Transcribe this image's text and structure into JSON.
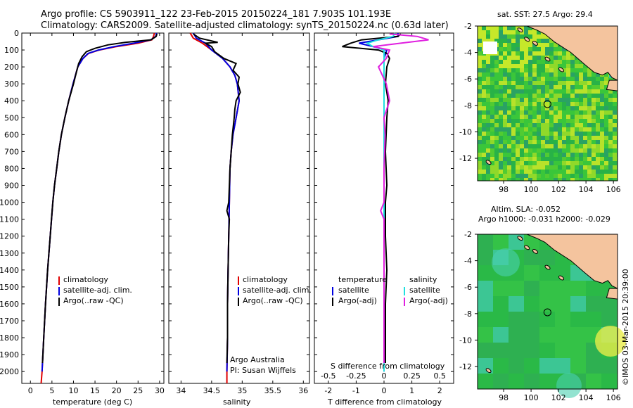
{
  "header": {
    "line1": "Argo profile: CS 5903911_122 23-Feb-2015 20150224_181 7.903S 101.193E",
    "line2": "Climatology: CARS2009. Satellite-adjusted climatology: synTS_20150224.nc (0.63d later)"
  },
  "colors": {
    "climatology": "#e00000",
    "satellite": "#0000e0",
    "argo": "#000000",
    "sat_salinity": "#20e0e0",
    "argo_salinity": "#e020e0",
    "land": "#f4c49e",
    "sea_green": "#2fbf2f"
  },
  "chart_data": [
    {
      "type": "line",
      "name": "temperature-profile",
      "xlabel": "temperature (deg C)",
      "ylabel": "depth",
      "xlim": [
        -2,
        31
      ],
      "ylim": [
        2070,
        0
      ],
      "xticks": [
        0,
        5,
        10,
        15,
        20,
        25,
        30
      ],
      "yticks": [
        0,
        100,
        200,
        300,
        400,
        500,
        600,
        700,
        800,
        900,
        1000,
        1100,
        1200,
        1300,
        1400,
        1500,
        1600,
        1700,
        1800,
        1900,
        2000
      ],
      "legend": [
        "climatology",
        "satellite-adj. clim.",
        "Argo(..raw -QC)"
      ],
      "series": [
        {
          "name": "climatology",
          "depth": [
            0,
            20,
            40,
            60,
            80,
            100,
            120,
            150,
            200,
            300,
            400,
            500,
            600,
            700,
            800,
            900,
            1000,
            1200,
            1400,
            1600,
            1800,
            2000,
            2070
          ],
          "values": [
            28.8,
            28.6,
            28.2,
            25,
            20,
            16,
            13.5,
            12.2,
            11,
            9.9,
            8.9,
            8,
            7.2,
            6.6,
            6.1,
            5.6,
            5.2,
            4.6,
            4,
            3.5,
            3.1,
            2.7,
            2.5
          ]
        },
        {
          "name": "satellite-adj. clim.",
          "depth": [
            0,
            20,
            40,
            60,
            80,
            100,
            120,
            150,
            200,
            300,
            400,
            500,
            600,
            700,
            800,
            900,
            1000,
            1200,
            1400,
            1600,
            1800,
            2000
          ],
          "values": [
            29.3,
            29.1,
            28,
            24,
            19.5,
            15.8,
            13.4,
            12.2,
            11,
            9.9,
            8.9,
            8,
            7.2,
            6.6,
            6.1,
            5.6,
            5.2,
            4.6,
            4,
            3.5,
            3.1,
            2.7
          ]
        },
        {
          "name": "Argo(..raw -QC)",
          "depth": [
            5,
            20,
            40,
            55,
            70,
            90,
            110,
            140,
            180,
            250,
            300,
            400,
            500,
            600,
            700,
            800,
            900,
            1000,
            1100,
            1200,
            1400,
            1600,
            1800,
            1950
          ],
          "values": [
            29.4,
            29.2,
            28,
            22,
            18,
            15,
            13,
            12,
            11.2,
            10.5,
            10,
            8.9,
            8,
            7.2,
            6.6,
            6.1,
            5.6,
            5.2,
            4.9,
            4.6,
            4,
            3.5,
            3.1,
            2.8
          ]
        }
      ]
    },
    {
      "type": "line",
      "name": "salinity-profile",
      "xlabel": "salinity",
      "xlim": [
        33.8,
        36.1
      ],
      "ylim": [
        2070,
        0
      ],
      "xticks": [
        34,
        34.5,
        35,
        35.5,
        36
      ],
      "legend": [
        "climatology",
        "satellite-adj. clim.",
        "Argo(..raw -QC)"
      ],
      "annotation": [
        "Argo Australia",
        "PI: Susan Wijffels"
      ],
      "series": [
        {
          "name": "climatology",
          "depth": [
            0,
            30,
            60,
            100,
            150,
            200,
            250,
            300,
            400,
            500,
            600,
            700,
            800,
            1000,
            1200,
            1400,
            1600,
            1800,
            2000,
            2070
          ],
          "values": [
            34.15,
            34.2,
            34.35,
            34.5,
            34.68,
            34.8,
            34.88,
            34.92,
            34.95,
            34.9,
            34.85,
            34.82,
            34.8,
            34.79,
            34.78,
            34.77,
            34.76,
            34.76,
            34.75,
            34.75
          ]
        },
        {
          "name": "satellite-adj. clim.",
          "depth": [
            0,
            30,
            60,
            100,
            150,
            200,
            250,
            300,
            400,
            500,
            600,
            700,
            800,
            1000,
            1200,
            1400,
            1600,
            1800,
            2000
          ],
          "values": [
            34.2,
            34.25,
            34.4,
            34.5,
            34.68,
            34.8,
            34.88,
            34.92,
            34.95,
            34.9,
            34.85,
            34.82,
            34.8,
            34.79,
            34.78,
            34.77,
            34.76,
            34.76,
            34.75
          ]
        },
        {
          "name": "Argo(..raw -QC)",
          "depth": [
            5,
            30,
            55,
            60,
            80,
            110,
            150,
            180,
            220,
            260,
            300,
            350,
            400,
            450,
            500,
            600,
            700,
            800,
            1000,
            1050,
            1100,
            1200,
            1400,
            1600,
            1800,
            1950
          ],
          "values": [
            34.2,
            34.3,
            34.6,
            34.4,
            34.5,
            34.55,
            34.7,
            34.9,
            34.85,
            34.95,
            34.93,
            34.97,
            34.9,
            34.88,
            34.87,
            34.84,
            34.82,
            34.8,
            34.78,
            34.75,
            34.79,
            34.78,
            34.77,
            34.76,
            34.76,
            34.75
          ]
        }
      ]
    },
    {
      "type": "line",
      "name": "difference-profile",
      "xlabel_top": "S difference from climatology",
      "xlabel": "T difference from climatology",
      "xlim": [
        -2.5,
        2.5
      ],
      "ylim": [
        2070,
        0
      ],
      "xticks": [
        -2,
        -1,
        0,
        1,
        2
      ],
      "s_xticks": [
        -0.5,
        -0.25,
        0,
        0.25,
        0.5
      ],
      "legend_temperature": [
        "temperature",
        "satellite",
        "Argo(-adj)"
      ],
      "legend_salinity": [
        "salinity",
        "satellite",
        "Argo(-adj)"
      ],
      "series": [
        {
          "name": "T satellite",
          "depth": [
            0,
            20,
            40,
            60,
            80,
            100,
            150,
            200,
            300,
            500,
            1000,
            1500,
            2000
          ],
          "values": [
            0.5,
            0.5,
            -0.2,
            -0.9,
            -0.4,
            0.1,
            0,
            0,
            0,
            0,
            0,
            0,
            0
          ]
        },
        {
          "name": "T Argo(-adj)",
          "depth": [
            5,
            20,
            40,
            60,
            80,
            100,
            120,
            150,
            200,
            300,
            400,
            500,
            700,
            900,
            1000,
            1200,
            1400,
            1600,
            1800,
            1950
          ],
          "values": [
            0.6,
            0.5,
            -0.8,
            -1.2,
            -1.5,
            -0.2,
            0.1,
            0.2,
            0.1,
            0.05,
            0.15,
            0.1,
            0.05,
            0.1,
            0.05,
            0.05,
            0.1,
            0.05,
            0.05,
            0.05
          ]
        },
        {
          "name": "S satellite",
          "depth": [
            0,
            20,
            40,
            60,
            80,
            100,
            150,
            200,
            300,
            500,
            1000,
            1500,
            2000
          ],
          "values": [
            0.1,
            0.08,
            -0.05,
            -0.15,
            -0.1,
            0,
            0,
            0,
            0,
            0,
            0,
            0,
            0
          ]
        },
        {
          "name": "S Argo(-adj)",
          "depth": [
            5,
            20,
            40,
            60,
            80,
            100,
            150,
            200,
            300,
            400,
            500,
            600,
            800,
            1000,
            1050,
            1100,
            1200,
            1400,
            1600,
            1800,
            1950
          ],
          "values": [
            0.05,
            0.3,
            0.4,
            0.15,
            -0.1,
            0.05,
            0.02,
            -0.05,
            0.02,
            0.05,
            0,
            0.01,
            0,
            0,
            -0.03,
            0,
            0,
            0,
            0,
            0,
            0
          ]
        }
      ]
    }
  ],
  "maps": {
    "sst": {
      "title": "sat. SST: 27.5 Argo: 29.4",
      "lon_ticks": [
        "98",
        "100",
        "102",
        "104",
        "106"
      ],
      "lat_ticks": [
        "-2",
        "-4",
        "-6",
        "-8",
        "-10",
        "-12"
      ],
      "argo_marker": {
        "lon": 101.193,
        "lat": -7.903
      }
    },
    "sla": {
      "title_line1": "Altim. SLA: -0.052",
      "title_line2": "Argo h1000: -0.031 h2000: -0.029",
      "lon_ticks": [
        "98",
        "100",
        "102",
        "104",
        "106"
      ],
      "lat_ticks": [
        "-2",
        "-4",
        "-6",
        "-8",
        "-10",
        "-12"
      ],
      "argo_marker": {
        "lon": 101.193,
        "lat": -7.903
      }
    }
  },
  "credit": "©IMOS 03-Mar-2015 20:39:00"
}
